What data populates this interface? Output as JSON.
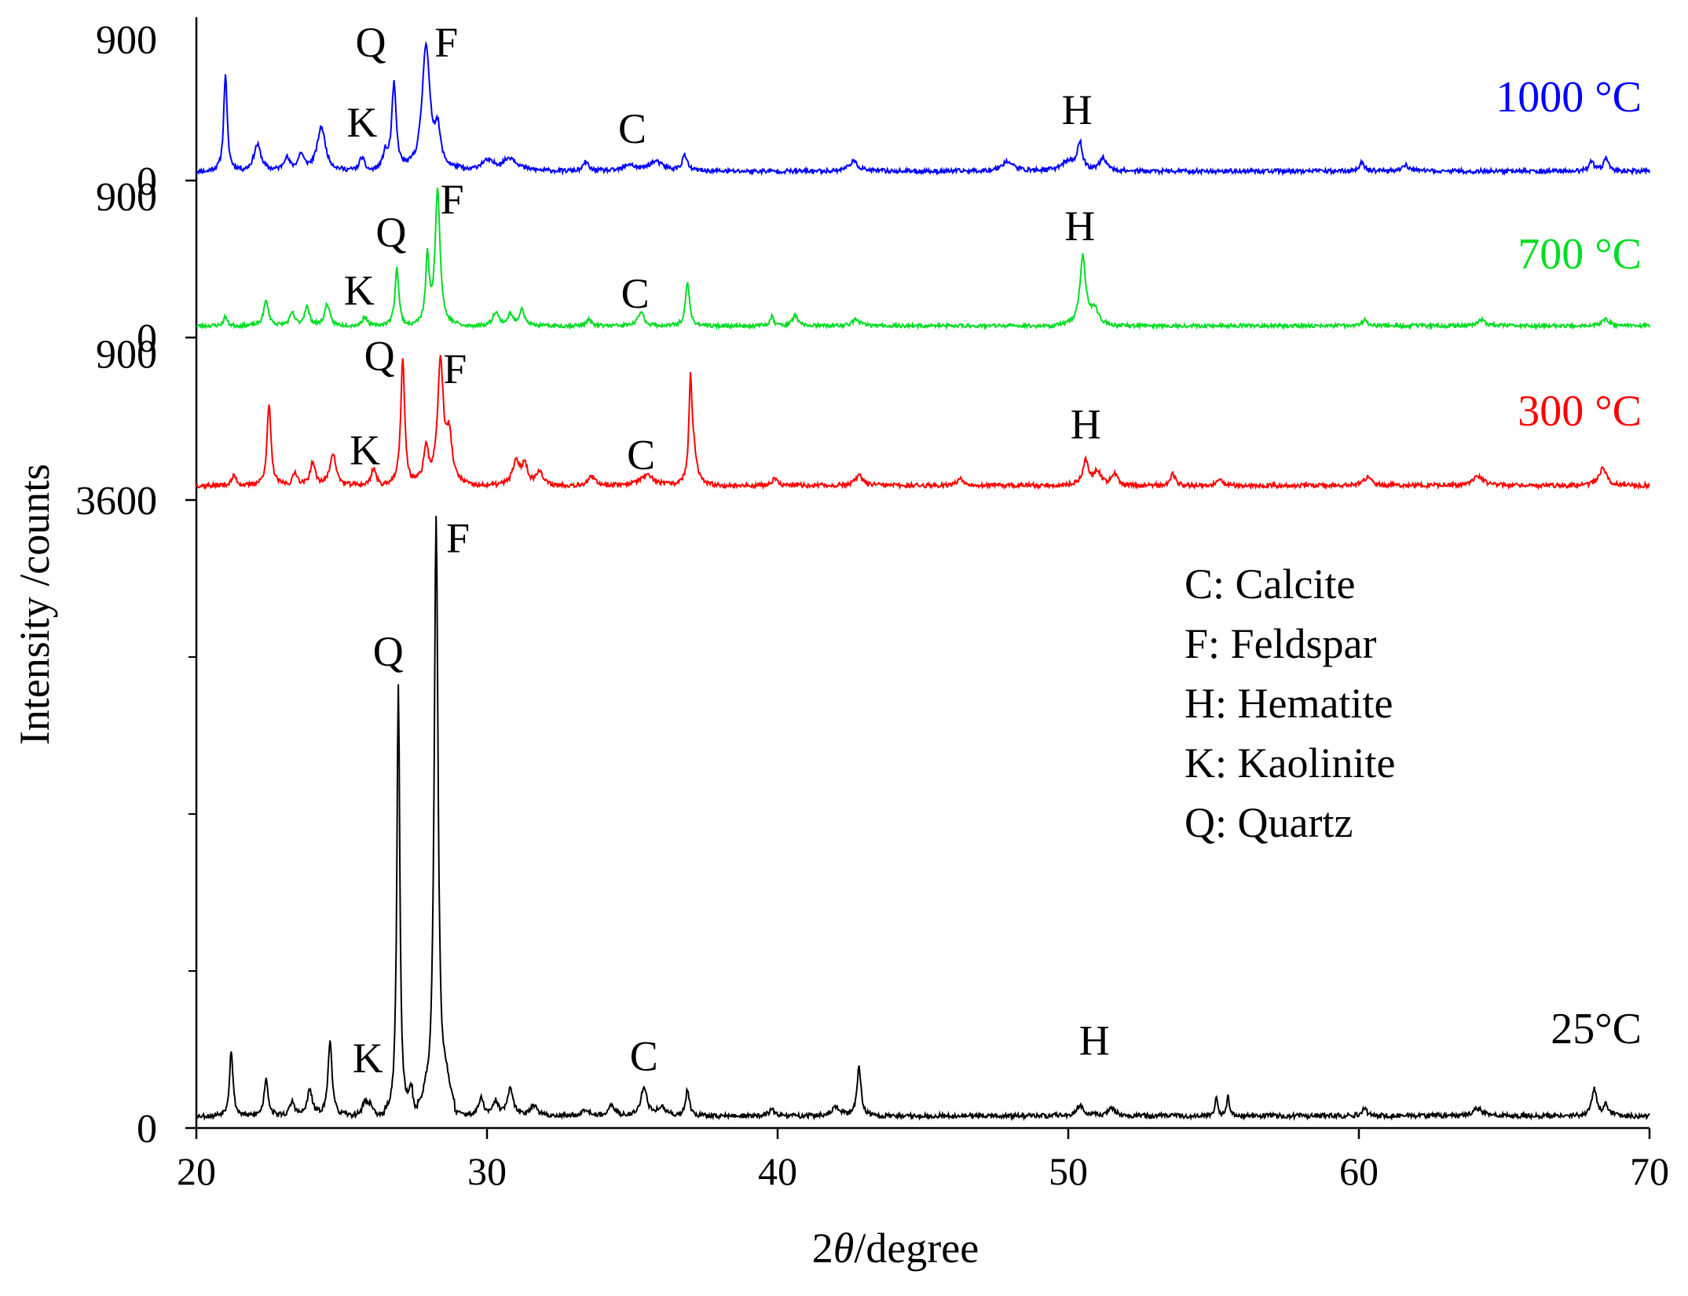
{
  "chart_data": {
    "type": "line",
    "xlabel_pre": "2",
    "xlabel_theta": "θ",
    "xlabel_post": "/degree",
    "ylabel": "Intensity /counts",
    "xlim": [
      20,
      70
    ],
    "x_ticks": [
      "20",
      "30",
      "40",
      "50",
      "60",
      "70"
    ],
    "legend": {
      "placement": "center-right",
      "entries": [
        "C: Calcite",
        "F: Feldspar",
        "H: Hematite",
        "K: Kaolinite",
        "Q: Quartz"
      ]
    },
    "panels": [
      {
        "series_name": "1000 °C",
        "color": "#0000ff",
        "ylim": [
          0,
          1000
        ],
        "tick_top": "900",
        "tick_bottom": "0",
        "baseline": 60,
        "noise": 14,
        "seed": 11,
        "peaks": [
          [
            21.0,
            620,
            0.07
          ],
          [
            22.1,
            170,
            0.15
          ],
          [
            23.1,
            80,
            0.12
          ],
          [
            23.6,
            100,
            0.12
          ],
          [
            24.3,
            280,
            0.17
          ],
          [
            25.7,
            90,
            0.1
          ],
          [
            26.5,
            110,
            0.1
          ],
          [
            26.8,
            540,
            0.09
          ],
          [
            27.9,
            800,
            0.16
          ],
          [
            28.3,
            230,
            0.12
          ],
          [
            30.0,
            60,
            0.3
          ],
          [
            30.8,
            80,
            0.3
          ],
          [
            33.4,
            60,
            0.1
          ],
          [
            34.9,
            40,
            0.2
          ],
          [
            35.8,
            60,
            0.3
          ],
          [
            36.8,
            100,
            0.1
          ],
          [
            42.6,
            60,
            0.2
          ],
          [
            47.9,
            60,
            0.25
          ],
          [
            50.0,
            60,
            0.3
          ],
          [
            50.4,
            170,
            0.1
          ],
          [
            51.2,
            80,
            0.15
          ],
          [
            60.1,
            60,
            0.1
          ],
          [
            61.6,
            40,
            0.15
          ],
          [
            68.0,
            60,
            0.1
          ],
          [
            68.5,
            80,
            0.1
          ]
        ],
        "labels": [
          {
            "text": "K",
            "x": 25.7,
            "y": 280
          },
          {
            "text": "Q",
            "x": 26.0,
            "y": 790
          },
          {
            "text": "F",
            "x": 28.6,
            "y": 790
          },
          {
            "text": "C",
            "x": 35.0,
            "y": 240
          },
          {
            "text": "H",
            "x": 50.3,
            "y": 360
          }
        ]
      },
      {
        "series_name": "700 °C",
        "color": "#00dd22",
        "ylim": [
          0,
          1000
        ],
        "tick_top": "900",
        "tick_bottom": "0",
        "baseline": 75,
        "noise": 12,
        "seed": 23,
        "peaks": [
          [
            21.0,
            60,
            0.07
          ],
          [
            22.4,
            160,
            0.1
          ],
          [
            23.3,
            80,
            0.1
          ],
          [
            23.8,
            120,
            0.1
          ],
          [
            24.5,
            140,
            0.1
          ],
          [
            25.8,
            60,
            0.1
          ],
          [
            26.9,
            370,
            0.08
          ],
          [
            27.95,
            430,
            0.07
          ],
          [
            28.3,
            870,
            0.1
          ],
          [
            30.3,
            90,
            0.12
          ],
          [
            30.8,
            70,
            0.1
          ],
          [
            31.2,
            110,
            0.1
          ],
          [
            33.5,
            40,
            0.1
          ],
          [
            35.3,
            90,
            0.12
          ],
          [
            36.9,
            280,
            0.08
          ],
          [
            39.8,
            60,
            0.08
          ],
          [
            40.6,
            70,
            0.1
          ],
          [
            42.7,
            40,
            0.15
          ],
          [
            50.5,
            440,
            0.12
          ],
          [
            50.9,
            100,
            0.15
          ],
          [
            60.2,
            40,
            0.1
          ],
          [
            64.2,
            40,
            0.15
          ],
          [
            68.5,
            40,
            0.15
          ]
        ],
        "labels": [
          {
            "text": "K",
            "x": 25.6,
            "y": 210
          },
          {
            "text": "Q",
            "x": 26.7,
            "y": 580
          },
          {
            "text": "F",
            "x": 28.8,
            "y": 790
          },
          {
            "text": "C",
            "x": 35.1,
            "y": 190
          },
          {
            "text": "H",
            "x": 50.4,
            "y": 620
          }
        ]
      },
      {
        "series_name": "300 °C",
        "color": "#ff0000",
        "ylim": [
          0,
          1000
        ],
        "tick_top": "900",
        "tick_bottom": "0",
        "baseline": 90,
        "noise": 14,
        "seed": 37,
        "peaks": [
          [
            21.3,
            60,
            0.1
          ],
          [
            22.5,
            500,
            0.08
          ],
          [
            23.4,
            80,
            0.1
          ],
          [
            24.0,
            140,
            0.1
          ],
          [
            24.7,
            200,
            0.12
          ],
          [
            26.1,
            110,
            0.1
          ],
          [
            27.1,
            790,
            0.08
          ],
          [
            27.9,
            220,
            0.1
          ],
          [
            28.4,
            750,
            0.12
          ],
          [
            28.7,
            280,
            0.12
          ],
          [
            31.0,
            140,
            0.15
          ],
          [
            31.3,
            120,
            0.12
          ],
          [
            31.8,
            90,
            0.12
          ],
          [
            33.6,
            50,
            0.15
          ],
          [
            35.5,
            60,
            0.3
          ],
          [
            37.0,
            570,
            0.06
          ],
          [
            37.1,
            200,
            0.12
          ],
          [
            39.9,
            40,
            0.1
          ],
          [
            42.8,
            60,
            0.15
          ],
          [
            46.3,
            40,
            0.15
          ],
          [
            50.6,
            150,
            0.12
          ],
          [
            51.0,
            80,
            0.15
          ],
          [
            51.6,
            70,
            0.12
          ],
          [
            53.6,
            70,
            0.1
          ],
          [
            55.2,
            50,
            0.1
          ],
          [
            60.3,
            50,
            0.15
          ],
          [
            64.1,
            60,
            0.2
          ],
          [
            68.4,
            110,
            0.15
          ]
        ],
        "labels": [
          {
            "text": "K",
            "x": 25.8,
            "y": 220
          },
          {
            "text": "Q",
            "x": 26.3,
            "y": 800
          },
          {
            "text": "F",
            "x": 28.9,
            "y": 720
          },
          {
            "text": "C",
            "x": 35.3,
            "y": 190
          },
          {
            "text": "H",
            "x": 50.6,
            "y": 380
          }
        ]
      },
      {
        "series_name": "25°C",
        "color": "#000000",
        "ylim": [
          0,
          3600
        ],
        "tick_top": "3600",
        "tick_bottom": "0",
        "minor_ticks": [
          900,
          1800,
          2700
        ],
        "baseline": 70,
        "noise": 14,
        "seed": 53,
        "peaks": [
          [
            21.2,
            380,
            0.07
          ],
          [
            22.4,
            220,
            0.08
          ],
          [
            23.3,
            80,
            0.1
          ],
          [
            23.9,
            150,
            0.1
          ],
          [
            24.6,
            440,
            0.08
          ],
          [
            25.8,
            80,
            0.1
          ],
          [
            26.0,
            60,
            0.1
          ],
          [
            26.95,
            2480,
            0.06
          ],
          [
            27.4,
            140,
            0.1
          ],
          [
            27.9,
            60,
            0.1
          ],
          [
            28.25,
            3400,
            0.08
          ],
          [
            28.6,
            150,
            0.15
          ],
          [
            29.8,
            100,
            0.1
          ],
          [
            30.3,
            80,
            0.1
          ],
          [
            30.8,
            150,
            0.12
          ],
          [
            31.6,
            60,
            0.15
          ],
          [
            33.4,
            40,
            0.15
          ],
          [
            34.3,
            60,
            0.12
          ],
          [
            35.4,
            170,
            0.12
          ],
          [
            36.0,
            50,
            0.15
          ],
          [
            36.9,
            150,
            0.08
          ],
          [
            39.8,
            40,
            0.1
          ],
          [
            42.0,
            50,
            0.15
          ],
          [
            42.8,
            280,
            0.08
          ],
          [
            50.4,
            60,
            0.15
          ],
          [
            51.5,
            40,
            0.15
          ],
          [
            55.1,
            110,
            0.05
          ],
          [
            55.5,
            120,
            0.05
          ],
          [
            60.2,
            40,
            0.1
          ],
          [
            64.1,
            40,
            0.2
          ],
          [
            68.1,
            150,
            0.1
          ],
          [
            68.5,
            60,
            0.1
          ]
        ],
        "labels": [
          {
            "text": "K",
            "x": 25.9,
            "y": 320
          },
          {
            "text": "Q",
            "x": 26.6,
            "y": 2650
          },
          {
            "text": "F",
            "x": 29.0,
            "y": 3300
          },
          {
            "text": "C",
            "x": 35.4,
            "y": 330
          },
          {
            "text": "H",
            "x": 50.9,
            "y": 420
          }
        ]
      }
    ]
  }
}
